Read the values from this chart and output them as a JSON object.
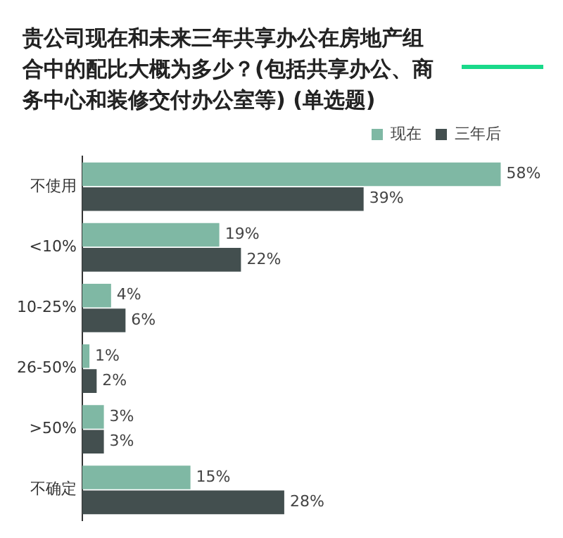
{
  "chart_data": {
    "type": "bar",
    "orientation": "horizontal",
    "title": "贵公司现在和未来三年共享办公在房地产组合中的配比大概为多少？(包括共享办公、商务中心和装修交付办公室等) (单选题)",
    "categories": [
      "不使用",
      "<10%",
      "10-25%",
      "26-50%",
      ">50%",
      "不确定"
    ],
    "series": [
      {
        "name": "现在",
        "color": "#7fb8a4",
        "values": [
          58,
          19,
          4,
          1,
          3,
          15
        ],
        "value_labels": [
          "58%",
          "19%",
          "4%",
          "1%",
          "3%",
          "15%"
        ]
      },
      {
        "name": "三年后",
        "color": "#434f4f",
        "values": [
          39,
          22,
          6,
          2,
          3,
          28
        ],
        "value_labels": [
          "39%",
          "22%",
          "6%",
          "2%",
          "3%",
          "28%"
        ]
      }
    ],
    "legend": "top right"
  }
}
